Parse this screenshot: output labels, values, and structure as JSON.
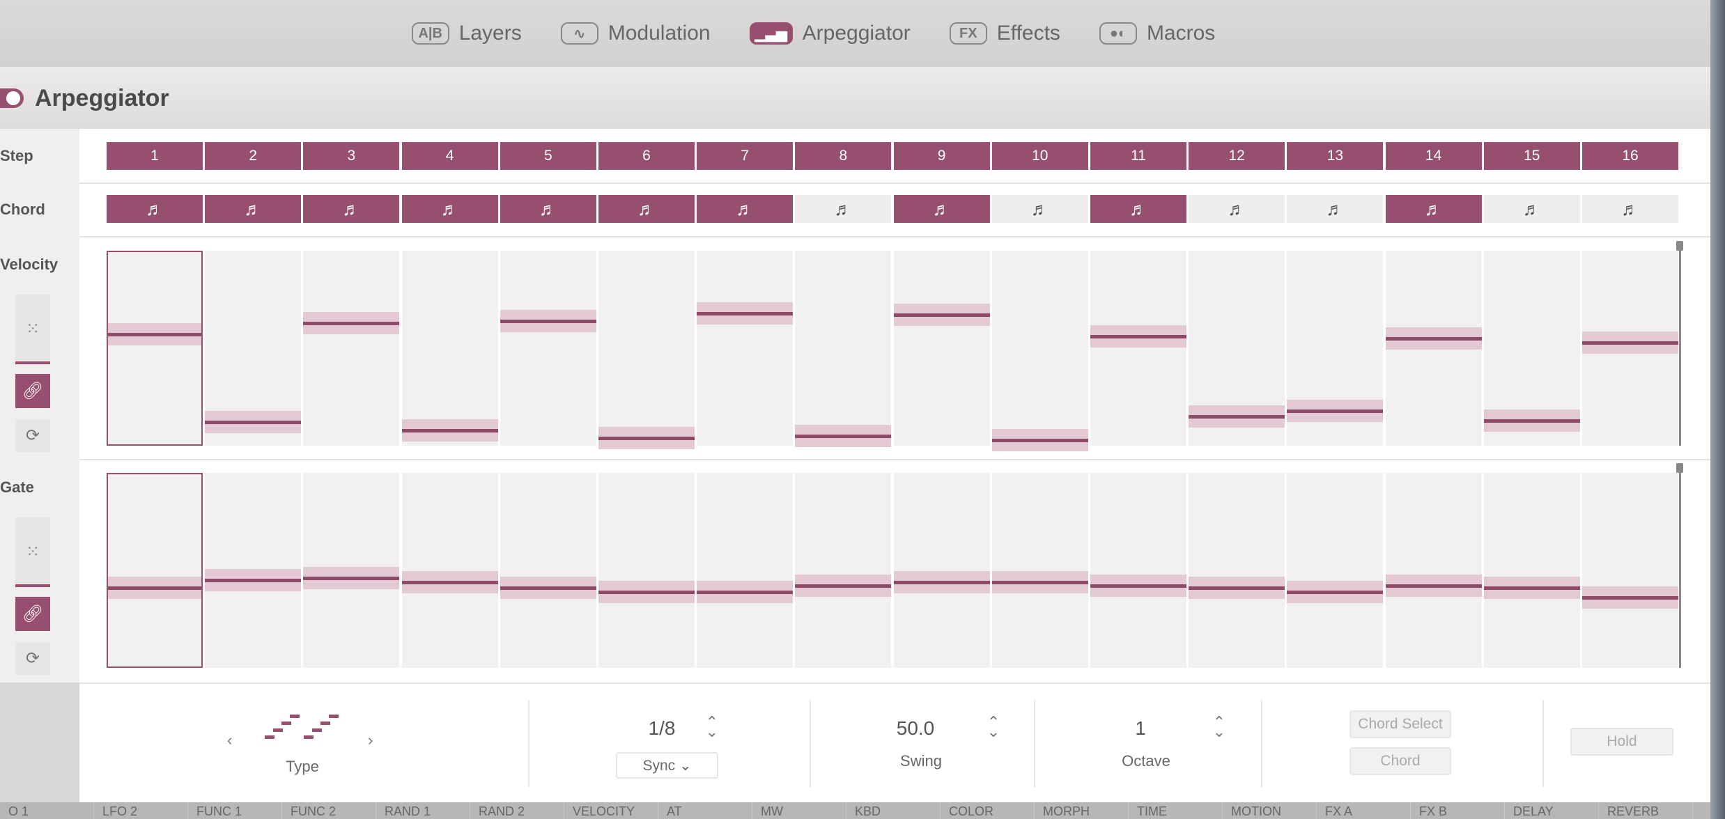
{
  "nav": {
    "tabs": [
      {
        "label": "Layers",
        "icon": "A|B",
        "active": false
      },
      {
        "label": "Modulation",
        "icon": "∿",
        "active": false
      },
      {
        "label": "Arpeggiator",
        "icon": "▁▃▅",
        "active": true
      },
      {
        "label": "Effects",
        "icon": "FX",
        "active": false
      },
      {
        "label": "Macros",
        "icon": "●◐",
        "active": false
      }
    ]
  },
  "header": {
    "title": "Arpeggiator",
    "enabled": true
  },
  "rows": {
    "step": "Step",
    "chord": "Chord",
    "velocity": "Velocity",
    "gate": "Gate"
  },
  "steps": [
    "1",
    "2",
    "3",
    "4",
    "5",
    "6",
    "7",
    "8",
    "9",
    "10",
    "11",
    "12",
    "13",
    "14",
    "15",
    "16"
  ],
  "chord_active": [
    true,
    true,
    true,
    true,
    true,
    true,
    true,
    false,
    true,
    false,
    true,
    false,
    false,
    true,
    false,
    false
  ],
  "chord_icon": "♬",
  "selected_step": 1,
  "velocity": [
    0.57,
    0.12,
    0.63,
    0.08,
    0.64,
    0.04,
    0.68,
    0.05,
    0.67,
    0.03,
    0.56,
    0.15,
    0.18,
    0.55,
    0.13,
    0.53
  ],
  "gate": [
    0.41,
    0.45,
    0.46,
    0.44,
    0.41,
    0.39,
    0.39,
    0.42,
    0.44,
    0.44,
    0.42,
    0.41,
    0.39,
    0.42,
    0.41,
    0.36
  ],
  "controls": {
    "type_label": "Type",
    "prev": "‹",
    "next": "›",
    "rate_value": "1/8",
    "sync_label": "Sync ⌄",
    "swing_value": "50.0",
    "swing_label": "Swing",
    "octave_value": "1",
    "octave_label": "Octave",
    "chord_select": "Chord Select",
    "chord": "Chord",
    "hold": "Hold",
    "stepper": "⌃⌄"
  },
  "mod_strip": [
    "O 1",
    "LFO 2",
    "FUNC 1",
    "FUNC 2",
    "RAND 1",
    "RAND 2",
    "VELOCITY",
    "AT",
    "MW",
    "KBD",
    "COLOR",
    "MORPH",
    "TIME",
    "MOTION",
    "FX A",
    "FX B",
    "DELAY",
    "REVERB"
  ],
  "colors": {
    "accent": "#964f6e",
    "band": "#e2c9d3"
  }
}
